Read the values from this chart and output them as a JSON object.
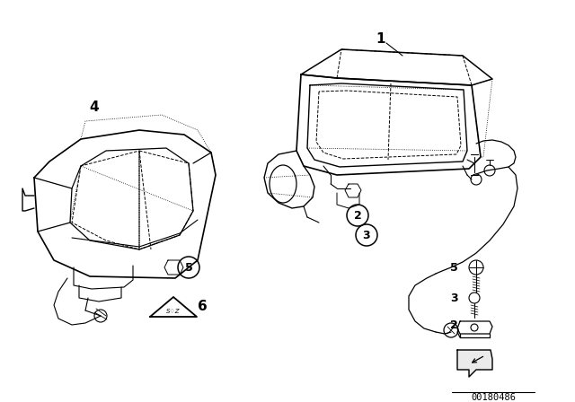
{
  "background_color": "#ffffff",
  "part_number": "00180486",
  "line_color": "#000000",
  "label_fontsize": 11,
  "small_label_fontsize": 9,
  "circle_label_fontsize": 9,
  "line_width": 0.9,
  "dashed_lw": 0.7,
  "dotted_lw": 0.6
}
